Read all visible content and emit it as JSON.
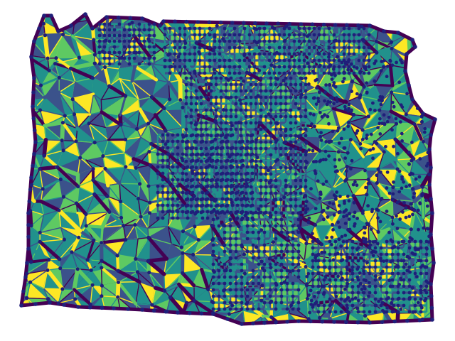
{
  "figure": {
    "description_visible_text": "",
    "background": "#ffffff"
  },
  "graph": {
    "kind": "planar-triangulated-mesh",
    "edge_colormap": [
      "#440154",
      "#3b528b",
      "#21918c",
      "#5ec962",
      "#fde725"
    ],
    "node_color": "#1f1f7a",
    "node_edge_color": "#2a2a8f"
  }
}
